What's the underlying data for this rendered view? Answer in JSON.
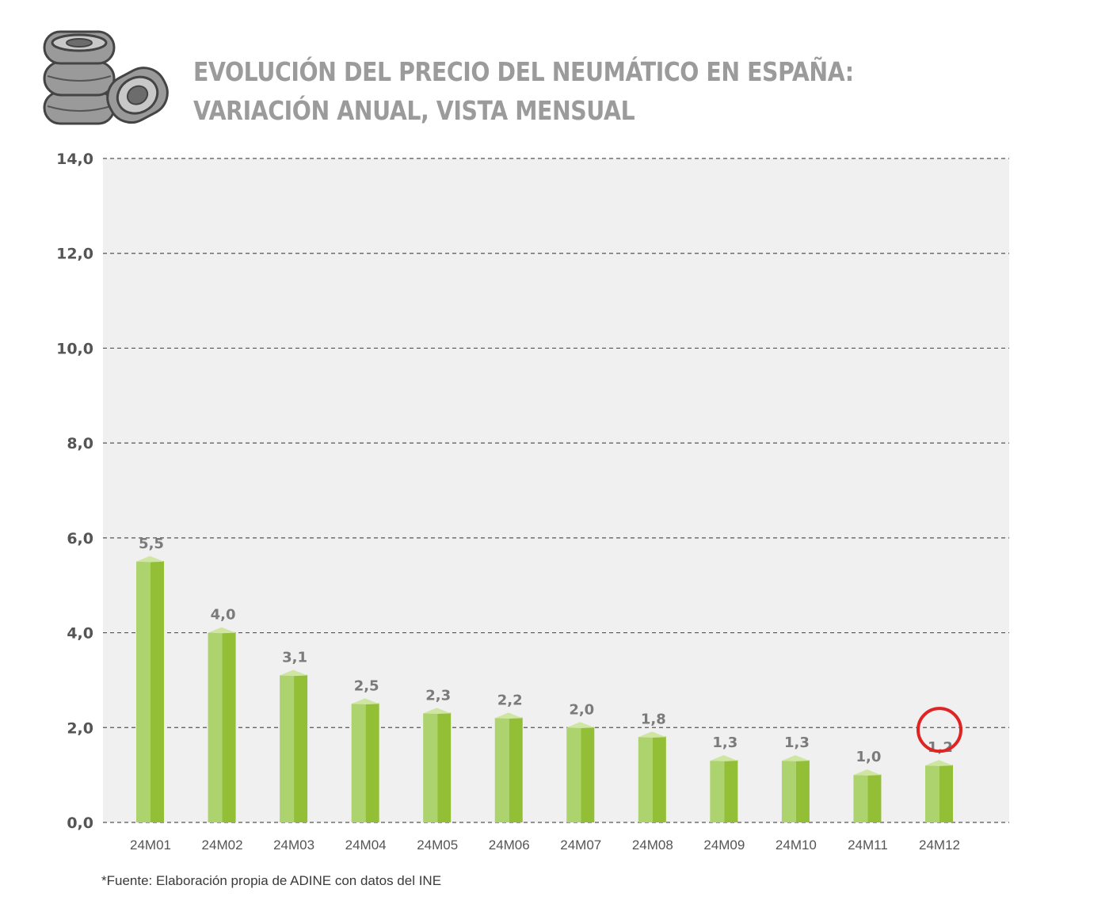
{
  "title": {
    "line1": "EVOLUCIÓN DEL PRECIO DEL NEUMÁTICO EN ESPAÑA:",
    "line2": "VARIACIÓN ANUAL, VISTA MENSUAL"
  },
  "source": "*Fuente: Elaboración propia de ADINE con datos del INE",
  "chart_data": {
    "type": "bar",
    "title": "EVOLUCIÓN DEL PRECIO DEL NEUMÁTICO EN ESPAÑA: VARIACIÓN ANUAL, VISTA MENSUAL",
    "categories": [
      "24M01",
      "24M02",
      "24M03",
      "24M04",
      "24M05",
      "24M06",
      "24M07",
      "24M08",
      "24M09",
      "24M10",
      "24M11",
      "24M12"
    ],
    "values": [
      5.5,
      4.0,
      3.1,
      2.5,
      2.3,
      2.2,
      2.0,
      1.8,
      1.3,
      1.3,
      1.0,
      1.2
    ],
    "value_labels": [
      "5,5",
      "4,0",
      "3,1",
      "2,5",
      "2,3",
      "2,2",
      "2,0",
      "1,8",
      "1,3",
      "1,3",
      "1,0",
      "1,2"
    ],
    "y_ticks": [
      0,
      2,
      4,
      6,
      8,
      10,
      12,
      14
    ],
    "y_tick_labels": [
      "0,0",
      "2,0",
      "4,0",
      "6,0",
      "8,0",
      "10,0",
      "12,0",
      "14,0"
    ],
    "ylim": [
      0,
      14
    ],
    "xlabel": "",
    "ylabel": "",
    "grid": true,
    "highlighted_category": "24M12",
    "colors": {
      "bar_front": "#add36e",
      "bar_side": "#93bf37",
      "bar_top": "#cfe6a2",
      "plot_background": "#eff0ef",
      "gridline": "#555555",
      "value_label": "#7b7b7b",
      "tick_label": "#555555",
      "highlight_circle": "#e02424"
    }
  }
}
